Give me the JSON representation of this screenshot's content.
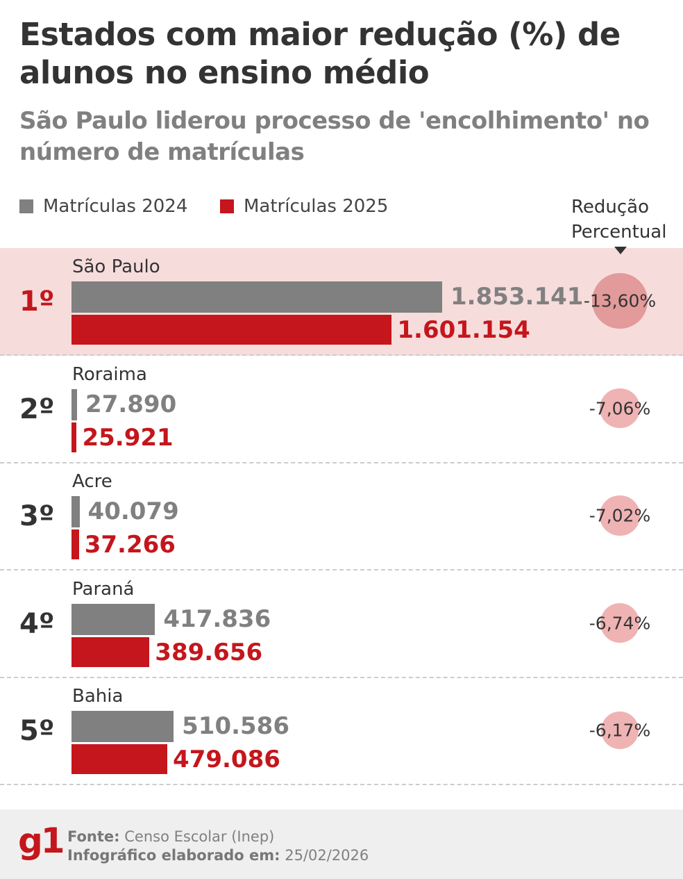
{
  "chart_data": {
    "type": "bar",
    "title": "Estados com maior redução (%) de alunos no ensino médio",
    "subtitle": "São Paulo liderou processo de 'encolhimento' no número de matrículas",
    "legend": [
      "Matrículas 2024",
      "Matrículas 2025"
    ],
    "reduction_header": "Redução Percentual",
    "colors": {
      "2024": "#808080",
      "2025": "#c4161c",
      "highlight": "#f7dcdc"
    },
    "rows": [
      {
        "rank": "1º",
        "state": "São Paulo",
        "v2024": 1853141,
        "v2025": 1601154,
        "l2024": "1.853.141",
        "l2025": "1.601.154",
        "reduction": -13.6,
        "reduction_label": "-13,60%"
      },
      {
        "rank": "2º",
        "state": "Roraima",
        "v2024": 27890,
        "v2025": 25921,
        "l2024": "27.890",
        "l2025": "25.921",
        "reduction": -7.06,
        "reduction_label": "-7,06%"
      },
      {
        "rank": "3º",
        "state": "Acre",
        "v2024": 40079,
        "v2025": 37266,
        "l2024": "40.079",
        "l2025": "37.266",
        "reduction": -7.02,
        "reduction_label": "-7,02%"
      },
      {
        "rank": "4º",
        "state": "Paraná",
        "v2024": 417836,
        "v2025": 389656,
        "l2024": "417.836",
        "l2025": "389.656",
        "reduction": -6.74,
        "reduction_label": "-6,74%"
      },
      {
        "rank": "5º",
        "state": "Bahia",
        "v2024": 510586,
        "v2025": 479086,
        "l2024": "510.586",
        "l2025": "479.086",
        "reduction": -6.17,
        "reduction_label": "-6,17%"
      }
    ]
  },
  "footer": {
    "logo": "g1",
    "source_label": "Fonte:",
    "source": "Censo Escolar (Inep)",
    "date_label": "Infográfico elaborado em:",
    "date": "25/02/2026"
  }
}
